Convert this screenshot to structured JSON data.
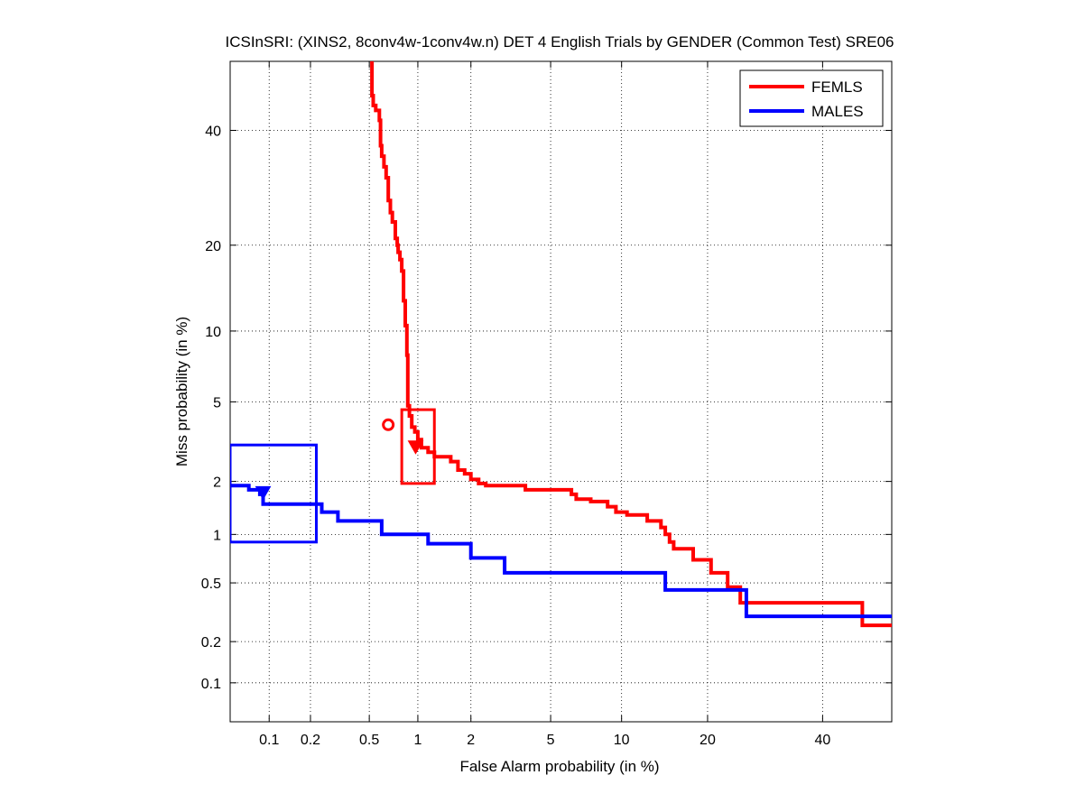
{
  "chart_data": {
    "type": "line",
    "title": "ICSInSRI: (XINS2, 8conv4w-1conv4w.n) DET 4 English Trials by GENDER (Common Test) SRE06",
    "xlabel": "False Alarm probability (in %)",
    "ylabel": "Miss probability (in %)",
    "x_scale": "probit",
    "y_scale": "probit",
    "xlim": [
      0.05,
      54
    ],
    "ylim": [
      0.05,
      54
    ],
    "x_ticks": [
      0.1,
      0.2,
      0.5,
      1,
      2,
      5,
      10,
      20,
      40
    ],
    "x_tick_labels": [
      "0.1",
      "0.2",
      "0.5",
      "1",
      "2",
      "5",
      "10",
      "20",
      "40"
    ],
    "y_ticks": [
      0.1,
      0.2,
      0.5,
      1,
      2,
      5,
      10,
      20,
      40
    ],
    "y_tick_labels": [
      "0.1",
      "0.2",
      "0.5",
      "1",
      "2",
      "5",
      "10",
      "20",
      "40"
    ],
    "grid": true,
    "legend_position": "top-right",
    "series": [
      {
        "name": "FEMLS",
        "color": "#ff0000",
        "points": [
          [
            0.52,
            54
          ],
          [
            0.52,
            47
          ],
          [
            0.53,
            47
          ],
          [
            0.53,
            45
          ],
          [
            0.55,
            45
          ],
          [
            0.55,
            44
          ],
          [
            0.58,
            44
          ],
          [
            0.58,
            42
          ],
          [
            0.59,
            42
          ],
          [
            0.59,
            37
          ],
          [
            0.6,
            37
          ],
          [
            0.6,
            35
          ],
          [
            0.62,
            35
          ],
          [
            0.62,
            33
          ],
          [
            0.64,
            33
          ],
          [
            0.64,
            31
          ],
          [
            0.66,
            31
          ],
          [
            0.66,
            27
          ],
          [
            0.68,
            27
          ],
          [
            0.68,
            25
          ],
          [
            0.7,
            25
          ],
          [
            0.7,
            23.5
          ],
          [
            0.73,
            23.5
          ],
          [
            0.73,
            21
          ],
          [
            0.75,
            21
          ],
          [
            0.75,
            20
          ],
          [
            0.76,
            20
          ],
          [
            0.76,
            19
          ],
          [
            0.78,
            19
          ],
          [
            0.78,
            18
          ],
          [
            0.8,
            18
          ],
          [
            0.8,
            16.5
          ],
          [
            0.82,
            16.5
          ],
          [
            0.82,
            13
          ],
          [
            0.84,
            13
          ],
          [
            0.84,
            10.5
          ],
          [
            0.86,
            10.5
          ],
          [
            0.86,
            8
          ],
          [
            0.87,
            8
          ],
          [
            0.87,
            4.8
          ],
          [
            0.89,
            4.8
          ],
          [
            0.89,
            4.3
          ],
          [
            0.92,
            4.3
          ],
          [
            0.92,
            3.8
          ],
          [
            0.96,
            3.8
          ],
          [
            0.96,
            3.6
          ],
          [
            1.0,
            3.6
          ],
          [
            1.0,
            3.3
          ],
          [
            1.05,
            3.3
          ],
          [
            1.05,
            3.0
          ],
          [
            1.15,
            3.0
          ],
          [
            1.15,
            2.85
          ],
          [
            1.25,
            2.85
          ],
          [
            1.25,
            2.7
          ],
          [
            1.55,
            2.7
          ],
          [
            1.55,
            2.55
          ],
          [
            1.7,
            2.55
          ],
          [
            1.7,
            2.3
          ],
          [
            1.85,
            2.3
          ],
          [
            1.85,
            2.2
          ],
          [
            2.0,
            2.2
          ],
          [
            2.0,
            2.05
          ],
          [
            2.2,
            2.05
          ],
          [
            2.2,
            1.95
          ],
          [
            2.4,
            1.95
          ],
          [
            2.4,
            1.9
          ],
          [
            3.8,
            1.9
          ],
          [
            3.8,
            1.8
          ],
          [
            6.2,
            1.8
          ],
          [
            6.2,
            1.7
          ],
          [
            6.5,
            1.7
          ],
          [
            6.5,
            1.6
          ],
          [
            7.5,
            1.6
          ],
          [
            7.5,
            1.55
          ],
          [
            8.8,
            1.55
          ],
          [
            8.8,
            1.45
          ],
          [
            9.5,
            1.45
          ],
          [
            9.5,
            1.35
          ],
          [
            10.5,
            1.35
          ],
          [
            10.5,
            1.3
          ],
          [
            12.5,
            1.3
          ],
          [
            12.5,
            1.2
          ],
          [
            14,
            1.2
          ],
          [
            14,
            1.1
          ],
          [
            14.5,
            1.1
          ],
          [
            14.5,
            1.0
          ],
          [
            15,
            1.0
          ],
          [
            15,
            0.9
          ],
          [
            15.5,
            0.9
          ],
          [
            15.5,
            0.82
          ],
          [
            18,
            0.82
          ],
          [
            18,
            0.7
          ],
          [
            20.5,
            0.7
          ],
          [
            20.5,
            0.58
          ],
          [
            23,
            0.58
          ],
          [
            23,
            0.47
          ],
          [
            25,
            0.47
          ],
          [
            25,
            0.37
          ],
          [
            48,
            0.37
          ],
          [
            48,
            0.26
          ],
          [
            54,
            0.26
          ]
        ]
      },
      {
        "name": "MALES",
        "color": "#0000ff",
        "points": [
          [
            0.05,
            1.9
          ],
          [
            0.07,
            1.9
          ],
          [
            0.07,
            1.8
          ],
          [
            0.085,
            1.8
          ],
          [
            0.085,
            1.7
          ],
          [
            0.09,
            1.7
          ],
          [
            0.09,
            1.5
          ],
          [
            0.24,
            1.5
          ],
          [
            0.24,
            1.35
          ],
          [
            0.31,
            1.35
          ],
          [
            0.31,
            1.2
          ],
          [
            0.6,
            1.2
          ],
          [
            0.6,
            1.0
          ],
          [
            1.15,
            1.0
          ],
          [
            1.15,
            0.88
          ],
          [
            2.0,
            0.88
          ],
          [
            2.0,
            0.72
          ],
          [
            3.0,
            0.72
          ],
          [
            3.0,
            0.58
          ],
          [
            14.5,
            0.58
          ],
          [
            14.5,
            0.45
          ],
          [
            26,
            0.45
          ],
          [
            26,
            0.3
          ],
          [
            54,
            0.3
          ]
        ]
      }
    ],
    "markers": [
      {
        "series": "FEMLS",
        "shape": "circle",
        "x": 0.66,
        "y": 3.9
      },
      {
        "series": "FEMLS",
        "shape": "triangle-down",
        "x": 0.97,
        "y": 3.05
      },
      {
        "series": "MALES",
        "shape": "triangle-down",
        "x": 0.09,
        "y": 1.75
      }
    ],
    "confidence_boxes": [
      {
        "series": "FEMLS",
        "x0": 0.8,
        "x1": 1.25,
        "y0": 1.95,
        "y1": 4.6
      },
      {
        "series": "MALES",
        "x0": 0.05,
        "x1": 0.22,
        "y0": 0.9,
        "y1": 3.1
      }
    ]
  }
}
